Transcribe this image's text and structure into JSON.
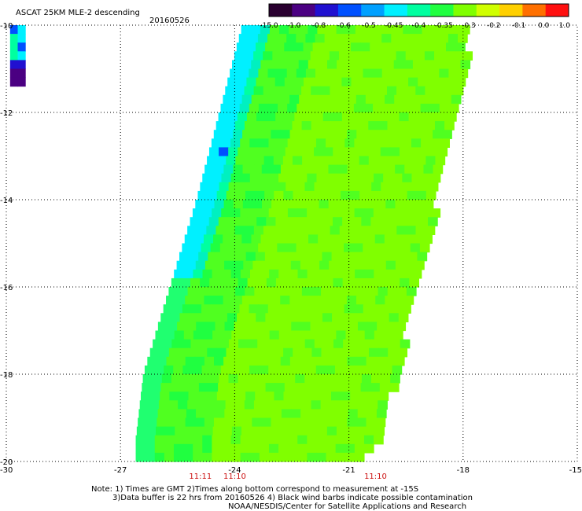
{
  "header": {
    "title": "ASCAT 25KM MLE-2 descending",
    "date": "20160526"
  },
  "colorbar": {
    "labels": [
      "-15.0",
      "-1.0",
      "-0.8",
      "-0.6",
      "-0.5",
      "-0.45",
      "-0.4",
      "-0.35",
      "-0.3",
      "-0.2",
      "-0.1",
      "0.0",
      "1.0"
    ],
    "colors": [
      "#2a0030",
      "#4b0082",
      "#2010d0",
      "#0050ff",
      "#00a0ff",
      "#00f0ff",
      "#00ffa0",
      "#20ff40",
      "#80ff00",
      "#d0ff00",
      "#ffd000",
      "#ff7000",
      "#ff1010"
    ]
  },
  "chart_data": {
    "type": "heatmap",
    "title": "ASCAT 25KM MLE-2 descending",
    "subtitle": "20160526",
    "xlabel": "",
    "ylabel": "",
    "xlim": [
      -30,
      -15
    ],
    "ylim": [
      -20,
      -10
    ],
    "x_ticks": [
      "-30",
      "-27",
      "-24",
      "-21",
      "-18",
      "-15"
    ],
    "y_ticks": [
      "-10",
      "-12",
      "-14",
      "-16",
      "-18",
      "-20"
    ],
    "x_tick_values": [
      -30,
      -27,
      -24,
      -21,
      -18,
      -15
    ],
    "y_tick_values": [
      -10,
      -12,
      -14,
      -16,
      -18,
      -20
    ],
    "grid": true,
    "swath": {
      "west_edge": [
        [
          -23.8,
          -10
        ],
        [
          -24.4,
          -12
        ],
        [
          -25.0,
          -14
        ],
        [
          -25.7,
          -16
        ],
        [
          -26.4,
          -18
        ],
        [
          -26.6,
          -19.5
        ],
        [
          -26.6,
          -20
        ]
      ],
      "east_edge": [
        [
          -17.9,
          -10
        ],
        [
          -18.0,
          -10.7
        ],
        [
          -18.2,
          -11.5
        ],
        [
          -18.5,
          -13
        ],
        [
          -18.9,
          -14.5
        ],
        [
          -19.3,
          -16
        ],
        [
          -19.7,
          -17.5
        ],
        [
          -20.0,
          -18.5
        ],
        [
          -20.2,
          -19.5
        ],
        [
          -21.0,
          -20
        ]
      ],
      "dominant_value_range": [
        -0.35,
        -0.3
      ]
    },
    "west_fragment": {
      "lon": [
        -29.9,
        -29.5
      ],
      "lat": [
        -10,
        -11.2
      ]
    },
    "time_labels": [
      {
        "lon": -24.9,
        "text": "11:11"
      },
      {
        "lon": -24.0,
        "text": "11:10"
      },
      {
        "lon": -20.3,
        "text": "11:10"
      }
    ]
  },
  "notes": {
    "line1": "Note: 1) Times are GMT 2)Times along bottom correspond to measurement at -15S",
    "line2": "3)Data buffer is 22 hrs from 20160526 4) Black wind barbs indicate possible contamination",
    "line3": "NOAA/NESDIS/Center for Satellite Applications and Research"
  }
}
